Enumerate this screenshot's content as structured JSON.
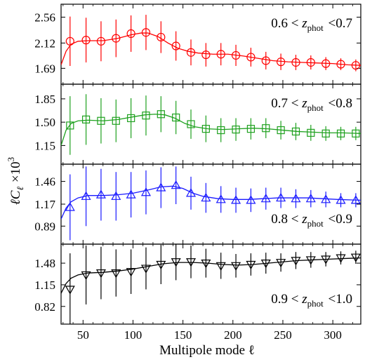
{
  "chart_data": {
    "type": "scatter",
    "xlabel": "Multipole mode ℓ",
    "ylabel": "ℓC_ℓ ×10^3",
    "xlim": [
      28,
      328
    ],
    "x_ticks": [
      50,
      100,
      150,
      200,
      250,
      300
    ],
    "x_tick_labels": [
      "50",
      "100",
      "150",
      "200",
      "250",
      "300"
    ],
    "panels": [
      {
        "label": "0.6 < z_phot < 0.7",
        "label_parts": {
          "left": "0.6 <",
          "var": "z",
          "sub": "phot",
          "right": "<0.7"
        },
        "label_position": "top-right",
        "color": "#ff0000",
        "marker": "circle",
        "ylim": [
          1.42,
          2.78
        ],
        "y_ticks": [
          1.69,
          2.12,
          2.56
        ],
        "y_tick_labels": [
          "1.69",
          "2.12",
          "2.56"
        ],
        "x": [
          37,
          53,
          68,
          83,
          98,
          113,
          128,
          143,
          158,
          173,
          188,
          203,
          218,
          233,
          248,
          263,
          278,
          293,
          308,
          323
        ],
        "y": [
          2.15,
          2.17,
          2.15,
          2.2,
          2.28,
          2.3,
          2.22,
          2.07,
          1.96,
          1.92,
          1.93,
          1.91,
          1.88,
          1.82,
          1.8,
          1.79,
          1.79,
          1.77,
          1.76,
          1.74
        ],
        "err": [
          0.42,
          0.38,
          0.34,
          0.32,
          0.31,
          0.3,
          0.27,
          0.25,
          0.22,
          0.2,
          0.19,
          0.18,
          0.16,
          0.15,
          0.14,
          0.13,
          0.12,
          0.11,
          0.1,
          0.1
        ],
        "curve": [
          [
            28,
            1.75
          ],
          [
            33,
            1.98
          ],
          [
            38,
            2.1
          ],
          [
            45,
            2.15
          ],
          [
            55,
            2.16
          ],
          [
            70,
            2.16
          ],
          [
            85,
            2.2
          ],
          [
            98,
            2.26
          ],
          [
            108,
            2.29
          ],
          [
            115,
            2.29
          ],
          [
            125,
            2.23
          ],
          [
            135,
            2.12
          ],
          [
            145,
            2.03
          ],
          [
            155,
            1.98
          ],
          [
            165,
            1.95
          ],
          [
            180,
            1.93
          ],
          [
            195,
            1.93
          ],
          [
            210,
            1.9
          ],
          [
            225,
            1.86
          ],
          [
            240,
            1.82
          ],
          [
            255,
            1.8
          ],
          [
            270,
            1.79
          ],
          [
            285,
            1.78
          ],
          [
            300,
            1.77
          ],
          [
            315,
            1.75
          ],
          [
            328,
            1.74
          ]
        ]
      },
      {
        "label": "0.7 < z_phot < 0.8",
        "label_parts": {
          "left": "0.7 <",
          "var": "z",
          "sub": "phot",
          "right": "<0.8"
        },
        "label_position": "top-right",
        "color": "#1fa11f",
        "marker": "square",
        "ylim": [
          0.87,
          2.07
        ],
        "y_ticks": [
          1.15,
          1.5,
          1.85
        ],
        "y_tick_labels": [
          "1.15",
          "1.50",
          "1.85"
        ],
        "x": [
          37,
          53,
          68,
          83,
          98,
          113,
          128,
          143,
          158,
          173,
          188,
          203,
          218,
          233,
          248,
          263,
          278,
          293,
          308,
          323
        ],
        "y": [
          1.45,
          1.54,
          1.52,
          1.52,
          1.56,
          1.6,
          1.62,
          1.57,
          1.47,
          1.4,
          1.38,
          1.39,
          1.4,
          1.41,
          1.38,
          1.36,
          1.34,
          1.33,
          1.33,
          1.33
        ],
        "err": [
          0.44,
          0.38,
          0.34,
          0.32,
          0.3,
          0.3,
          0.27,
          0.25,
          0.22,
          0.2,
          0.18,
          0.17,
          0.16,
          0.15,
          0.14,
          0.13,
          0.12,
          0.11,
          0.1,
          0.1
        ],
        "curve": [
          [
            28,
            1.15
          ],
          [
            33,
            1.38
          ],
          [
            38,
            1.48
          ],
          [
            45,
            1.52
          ],
          [
            55,
            1.53
          ],
          [
            70,
            1.52
          ],
          [
            85,
            1.54
          ],
          [
            100,
            1.58
          ],
          [
            112,
            1.61
          ],
          [
            122,
            1.62
          ],
          [
            132,
            1.61
          ],
          [
            142,
            1.56
          ],
          [
            152,
            1.48
          ],
          [
            162,
            1.43
          ],
          [
            175,
            1.4
          ],
          [
            190,
            1.39
          ],
          [
            205,
            1.4
          ],
          [
            220,
            1.41
          ],
          [
            235,
            1.4
          ],
          [
            250,
            1.38
          ],
          [
            265,
            1.36
          ],
          [
            280,
            1.35
          ],
          [
            295,
            1.34
          ],
          [
            310,
            1.34
          ],
          [
            328,
            1.33
          ]
        ]
      },
      {
        "label": "0.8 < z_phot < 0.9",
        "label_parts": {
          "left": "0.8 <",
          "var": "z",
          "sub": "phot",
          "right": "<0.9"
        },
        "label_position": "bottom-right",
        "color": "#1a1aff",
        "marker": "triangle-up",
        "ylim": [
          0.66,
          1.68
        ],
        "y_ticks": [
          0.89,
          1.17,
          1.46
        ],
        "y_tick_labels": [
          "0.89",
          "1.17",
          "1.46"
        ],
        "x": [
          37,
          53,
          68,
          83,
          98,
          113,
          128,
          143,
          158,
          173,
          188,
          203,
          218,
          233,
          248,
          263,
          278,
          293,
          308,
          323
        ],
        "y": [
          1.13,
          1.27,
          1.29,
          1.27,
          1.29,
          1.32,
          1.38,
          1.41,
          1.31,
          1.25,
          1.23,
          1.22,
          1.22,
          1.24,
          1.25,
          1.24,
          1.24,
          1.23,
          1.22,
          1.22
        ],
        "err": [
          0.42,
          0.38,
          0.33,
          0.31,
          0.29,
          0.28,
          0.26,
          0.24,
          0.21,
          0.19,
          0.17,
          0.16,
          0.15,
          0.14,
          0.13,
          0.12,
          0.11,
          0.1,
          0.09,
          0.09
        ],
        "curve": [
          [
            28,
            0.98
          ],
          [
            33,
            1.12
          ],
          [
            38,
            1.2
          ],
          [
            45,
            1.25
          ],
          [
            55,
            1.28
          ],
          [
            70,
            1.28
          ],
          [
            85,
            1.29
          ],
          [
            100,
            1.31
          ],
          [
            115,
            1.35
          ],
          [
            128,
            1.39
          ],
          [
            140,
            1.4
          ],
          [
            150,
            1.37
          ],
          [
            160,
            1.31
          ],
          [
            170,
            1.27
          ],
          [
            185,
            1.24
          ],
          [
            200,
            1.23
          ],
          [
            215,
            1.23
          ],
          [
            230,
            1.24
          ],
          [
            245,
            1.25
          ],
          [
            260,
            1.25
          ],
          [
            275,
            1.25
          ],
          [
            290,
            1.24
          ],
          [
            305,
            1.23
          ],
          [
            328,
            1.22
          ]
        ]
      },
      {
        "label": "0.9 < z_phot < 1.0",
        "label_parts": {
          "left": "0.9 <",
          "var": "z",
          "sub": "phot",
          "right": "<1.0"
        },
        "label_position": "bottom-right",
        "color": "#000000",
        "marker": "triangle-down",
        "ylim": [
          0.55,
          1.77
        ],
        "y_ticks": [
          0.82,
          1.15,
          1.48
        ],
        "y_tick_labels": [
          "0.82",
          "1.15",
          "1.48"
        ],
        "x": [
          37,
          53,
          68,
          83,
          98,
          113,
          128,
          143,
          158,
          173,
          188,
          203,
          218,
          233,
          248,
          263,
          278,
          293,
          308,
          323
        ],
        "y": [
          1.08,
          1.3,
          1.33,
          1.33,
          1.35,
          1.4,
          1.46,
          1.5,
          1.5,
          1.48,
          1.44,
          1.44,
          1.46,
          1.48,
          1.49,
          1.52,
          1.53,
          1.54,
          1.56,
          1.57
        ],
        "err": [
          0.55,
          0.45,
          0.4,
          0.36,
          0.34,
          0.32,
          0.3,
          0.28,
          0.25,
          0.22,
          0.2,
          0.18,
          0.17,
          0.16,
          0.14,
          0.13,
          0.12,
          0.11,
          0.1,
          0.1
        ],
        "curve": [
          [
            28,
            1.02
          ],
          [
            33,
            1.17
          ],
          [
            38,
            1.25
          ],
          [
            45,
            1.3
          ],
          [
            55,
            1.33
          ],
          [
            70,
            1.34
          ],
          [
            85,
            1.36
          ],
          [
            100,
            1.39
          ],
          [
            115,
            1.43
          ],
          [
            130,
            1.47
          ],
          [
            145,
            1.49
          ],
          [
            160,
            1.49
          ],
          [
            175,
            1.48
          ],
          [
            190,
            1.46
          ],
          [
            205,
            1.45
          ],
          [
            220,
            1.46
          ],
          [
            235,
            1.48
          ],
          [
            250,
            1.5
          ],
          [
            265,
            1.52
          ],
          [
            280,
            1.53
          ],
          [
            295,
            1.54
          ],
          [
            310,
            1.55
          ],
          [
            328,
            1.56
          ]
        ]
      }
    ]
  }
}
